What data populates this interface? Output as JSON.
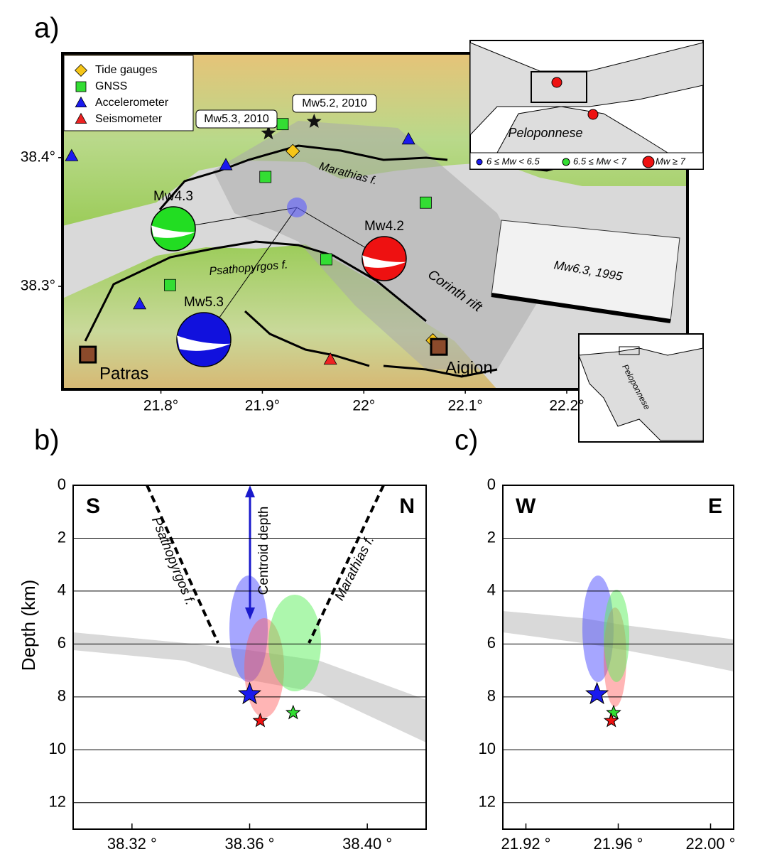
{
  "chart_data": [
    {
      "type": "map",
      "title": "a)",
      "xlim": [
        21.703,
        22.319
      ],
      "ylim": [
        38.22,
        38.481
      ],
      "xticks": [
        {
          "value": 21.8,
          "label": "21.8°"
        },
        {
          "value": 21.9,
          "label": "21.9°"
        },
        {
          "value": 22.0,
          "label": "22°"
        },
        {
          "value": 22.1,
          "label": "22.1°"
        },
        {
          "value": 22.2,
          "label": "22.2°"
        }
      ],
      "yticks": [
        {
          "value": 38.3,
          "label": "38.3°"
        },
        {
          "value": 38.4,
          "label": "38.4°"
        }
      ],
      "legend": "upper left",
      "series": [
        {
          "name": "Tide gauges",
          "color": "#f5c518",
          "marker": "diamond",
          "x": [
            21.93,
            22.068
          ],
          "y": [
            38.405,
            38.258
          ]
        },
        {
          "name": "GNSS",
          "color": "#33dd33",
          "marker": "square",
          "x": [
            21.92,
            21.903,
            22.061,
            21.963,
            21.809
          ],
          "y": [
            38.426,
            38.385,
            38.365,
            38.321,
            38.301
          ]
        },
        {
          "name": "Accelerometer",
          "color": "#1a1aee",
          "marker": "triangle",
          "x": [
            21.712,
            21.864,
            22.044,
            21.779
          ],
          "y": [
            38.401,
            38.394,
            38.414,
            38.286
          ]
        },
        {
          "name": "Seismometer",
          "color": "#ee2222",
          "marker": "triangle",
          "x": [
            21.967
          ],
          "y": [
            38.243
          ]
        }
      ],
      "events": {
        "labels": [
          "Mw5.3, 2010",
          "Mw5.2, 2010"
        ],
        "x": [
          21.906,
          21.951
        ],
        "y": [
          38.419,
          38.428
        ]
      },
      "cities": {
        "names": [
          "Patras",
          "Aigion"
        ],
        "x": [
          21.728,
          22.074
        ],
        "y": [
          38.247,
          38.253
        ]
      },
      "mechanisms": {
        "labels": [
          "Mw4.3",
          "Mw4.2",
          "Mw5.3"
        ],
        "colors": [
          "#22dd22",
          "#ee1111",
          "#1111dd"
        ]
      },
      "annotations": [
        "Marathias f.",
        "Psathopyrgos f.",
        "Corinth rift",
        "Mw6.3, 1995"
      ],
      "inset": {
        "label": "Peloponnese",
        "legend": [
          "6 ≤ Mw < 6.5",
          "6.5 ≤ Mw < 7",
          "Mw ≥ 7"
        ],
        "legend_colors": [
          "#1a1aee",
          "#33dd33",
          "#ee1111"
        ]
      },
      "inset2": {
        "label": "Peloponnese"
      }
    },
    {
      "type": "scatter",
      "title": "b)",
      "ylabel": "Depth (km)",
      "xlim": [
        38.3,
        38.42
      ],
      "ylim": [
        0,
        13
      ],
      "y_inverted": true,
      "grid": true,
      "xticks": [
        {
          "value": 38.32,
          "label": "38.32 °"
        },
        {
          "value": 38.36,
          "label": "38.36 °"
        },
        {
          "value": 38.4,
          "label": "38.40 °"
        }
      ],
      "yticks": [
        0,
        2,
        4,
        6,
        8,
        10,
        12
      ],
      "corner_labels": [
        "S",
        "N"
      ],
      "annotations": [
        "Psathopyrgos f.",
        "Marathias f.",
        "Centroid depth"
      ],
      "hypocenters": {
        "colors": [
          "#1a1aee",
          "#ee1111",
          "#33dd33"
        ],
        "x": [
          38.36,
          38.3636,
          38.3748
        ],
        "y": [
          7.9,
          8.9,
          8.6
        ]
      }
    },
    {
      "type": "scatter",
      "title": "c)",
      "xlim": [
        21.91,
        22.01
      ],
      "ylim": [
        0,
        13
      ],
      "y_inverted": true,
      "grid": true,
      "xticks": [
        {
          "value": 21.92,
          "label": "21.92 °"
        },
        {
          "value": 21.96,
          "label": "21.96 °"
        },
        {
          "value": 22.0,
          "label": "22.00 °"
        }
      ],
      "yticks": [
        0,
        2,
        4,
        6,
        8,
        10,
        12
      ],
      "corner_labels": [
        "W",
        "E"
      ],
      "hypocenters": {
        "colors": [
          "#1a1aee",
          "#33dd33",
          "#ee1111"
        ],
        "x": [
          21.9508,
          21.958,
          21.957
        ],
        "y": [
          7.9,
          8.6,
          8.9
        ]
      }
    }
  ]
}
